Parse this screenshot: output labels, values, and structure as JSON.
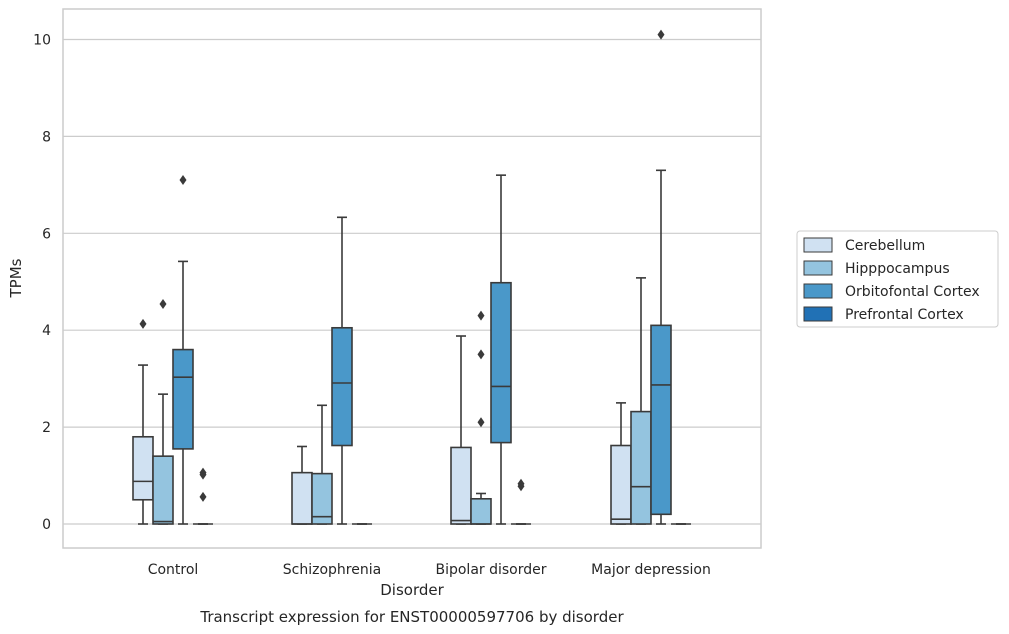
{
  "chart_data": {
    "type": "box",
    "xlabel": "Disorder",
    "ylabel": "TPMs",
    "caption": "Transcript expression for ENST00000597706 by disorder",
    "ylim": [
      -0.5,
      10.6
    ],
    "yticks": [
      0,
      2,
      4,
      6,
      8,
      10
    ],
    "grid": true,
    "legend_placement": "right",
    "categories": [
      "Control",
      "Schizophrenia",
      "Bipolar disorder",
      "Major depression"
    ],
    "series": [
      {
        "name": "Cerebellum",
        "color": "#d0e1f2",
        "boxes": [
          {
            "whislo": 0,
            "q1": 0.5,
            "med": 0.88,
            "q3": 1.8,
            "whishi": 3.28,
            "fliers": [
              4.13
            ]
          },
          {
            "whislo": 0,
            "q1": 0,
            "med": 0,
            "q3": 1.06,
            "whishi": 1.6,
            "fliers": []
          },
          {
            "whislo": 0,
            "q1": 0,
            "med": 0.07,
            "q3": 1.58,
            "whishi": 3.88,
            "fliers": []
          },
          {
            "whislo": 0,
            "q1": 0,
            "med": 0.1,
            "q3": 1.62,
            "whishi": 2.5,
            "fliers": []
          }
        ]
      },
      {
        "name": "Hipppocampus",
        "color": "#94c4df",
        "boxes": [
          {
            "whislo": 0,
            "q1": 0,
            "med": 0.05,
            "q3": 1.4,
            "whishi": 2.68,
            "fliers": [
              4.54
            ]
          },
          {
            "whislo": 0,
            "q1": 0,
            "med": 0.15,
            "q3": 1.04,
            "whishi": 2.45,
            "fliers": []
          },
          {
            "whislo": 0,
            "q1": 0,
            "med": 0,
            "q3": 0.52,
            "whishi": 0.63,
            "fliers": [
              2.1,
              3.5,
              4.3
            ]
          },
          {
            "whislo": 0,
            "q1": 0,
            "med": 0.77,
            "q3": 2.32,
            "whishi": 5.08,
            "fliers": []
          }
        ]
      },
      {
        "name": "Orbitofontal Cortex",
        "color": "#4a98c9",
        "boxes": [
          {
            "whislo": 0,
            "q1": 1.55,
            "med": 3.03,
            "q3": 3.6,
            "whishi": 5.42,
            "fliers": [
              7.1
            ]
          },
          {
            "whislo": 0,
            "q1": 1.62,
            "med": 2.91,
            "q3": 4.05,
            "whishi": 6.33,
            "fliers": []
          },
          {
            "whislo": 0,
            "q1": 1.68,
            "med": 2.84,
            "q3": 4.98,
            "whishi": 7.2,
            "fliers": []
          },
          {
            "whislo": 0,
            "q1": 0.2,
            "med": 2.87,
            "q3": 4.1,
            "whishi": 7.3,
            "fliers": [
              10.1
            ]
          }
        ]
      },
      {
        "name": "Prefrontal Cortex",
        "color": "#2171b5",
        "boxes": [
          {
            "whislo": 0,
            "q1": 0,
            "med": 0,
            "q3": 0,
            "whishi": 0,
            "fliers": [
              0.56,
              1.02,
              1.06
            ]
          },
          {
            "whislo": 0,
            "q1": 0,
            "med": 0,
            "q3": 0,
            "whishi": 0,
            "fliers": []
          },
          {
            "whislo": 0,
            "q1": 0,
            "med": 0,
            "q3": 0,
            "whishi": 0,
            "fliers": [
              0.78,
              0.83
            ]
          },
          {
            "whislo": 0,
            "q1": 0,
            "med": 0,
            "q3": 0,
            "whishi": 0,
            "fliers": []
          }
        ]
      }
    ]
  }
}
